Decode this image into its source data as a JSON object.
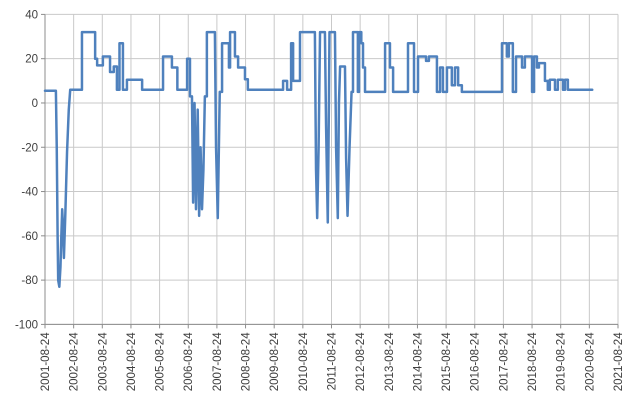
{
  "chart_data": {
    "type": "line",
    "title": "",
    "xlabel": "",
    "ylabel": "",
    "grid": true,
    "legend": "none",
    "series_name": "value",
    "series_color": "#4F81BD",
    "grid_color": "#C9C9C9",
    "axis_color": "#8C8C8C",
    "tick_text_color": "#404040",
    "background_color": "#FFFFFF",
    "ylim": [
      -100,
      40
    ],
    "y_step": 20,
    "y_tick_labels": [
      "40",
      "20",
      "0",
      "-20",
      "-40",
      "-60",
      "-80",
      "-100"
    ],
    "x_range_years": [
      0,
      20
    ],
    "x_tick_labels": [
      "2001-08-24",
      "2002-08-24",
      "2003-08-24",
      "2004-08-24",
      "2005-08-24",
      "2006-08-24",
      "2007-08-24",
      "2008-08-24",
      "2009-08-24",
      "2010-08-24",
      "2011-08-24",
      "2012-08-24",
      "2013-08-24",
      "2014-08-24",
      "2015-08-24",
      "2016-08-24",
      "2017-08-24",
      "2018-08-24",
      "2019-08-24",
      "2020-08-24",
      "2021-08-24"
    ],
    "points": [
      [
        0.0,
        5.5
      ],
      [
        0.38,
        5.5
      ],
      [
        0.41,
        -20
      ],
      [
        0.44,
        -60
      ],
      [
        0.46,
        -80
      ],
      [
        0.5,
        -83
      ],
      [
        0.54,
        -74
      ],
      [
        0.57,
        -60
      ],
      [
        0.6,
        -48
      ],
      [
        0.63,
        -56
      ],
      [
        0.66,
        -70
      ],
      [
        0.71,
        -50
      ],
      [
        0.77,
        -22
      ],
      [
        0.83,
        -3
      ],
      [
        0.88,
        6
      ],
      [
        1.29,
        6
      ],
      [
        1.29,
        32
      ],
      [
        1.75,
        32
      ],
      [
        1.75,
        20
      ],
      [
        1.82,
        20
      ],
      [
        1.82,
        17
      ],
      [
        2.02,
        17
      ],
      [
        2.02,
        21
      ],
      [
        2.27,
        21
      ],
      [
        2.27,
        14
      ],
      [
        2.4,
        14
      ],
      [
        2.4,
        16.5
      ],
      [
        2.51,
        16.5
      ],
      [
        2.51,
        6
      ],
      [
        2.6,
        6
      ],
      [
        2.6,
        27
      ],
      [
        2.72,
        27
      ],
      [
        2.72,
        6
      ],
      [
        2.86,
        6
      ],
      [
        2.86,
        10.5
      ],
      [
        3.39,
        10.5
      ],
      [
        3.39,
        6
      ],
      [
        4.12,
        6
      ],
      [
        4.12,
        21
      ],
      [
        4.43,
        21
      ],
      [
        4.43,
        16
      ],
      [
        4.62,
        16
      ],
      [
        4.62,
        6
      ],
      [
        4.96,
        6
      ],
      [
        4.96,
        20
      ],
      [
        5.06,
        20
      ],
      [
        5.06,
        3
      ],
      [
        5.13,
        3
      ],
      [
        5.17,
        -45
      ],
      [
        5.22,
        0
      ],
      [
        5.27,
        -48
      ],
      [
        5.33,
        -3
      ],
      [
        5.38,
        -51
      ],
      [
        5.43,
        -20
      ],
      [
        5.48,
        -48
      ],
      [
        5.53,
        -30
      ],
      [
        5.58,
        3
      ],
      [
        5.65,
        3
      ],
      [
        5.65,
        32
      ],
      [
        5.93,
        32
      ],
      [
        5.97,
        -20
      ],
      [
        6.03,
        -52
      ],
      [
        6.1,
        5
      ],
      [
        6.18,
        5
      ],
      [
        6.18,
        27
      ],
      [
        6.42,
        27
      ],
      [
        6.42,
        16
      ],
      [
        6.46,
        16
      ],
      [
        6.46,
        32
      ],
      [
        6.63,
        32
      ],
      [
        6.63,
        21
      ],
      [
        6.74,
        21
      ],
      [
        6.74,
        16
      ],
      [
        6.98,
        16
      ],
      [
        6.98,
        10.7
      ],
      [
        7.08,
        10.7
      ],
      [
        7.08,
        6
      ],
      [
        8.31,
        6
      ],
      [
        8.31,
        10
      ],
      [
        8.45,
        10
      ],
      [
        8.45,
        6
      ],
      [
        8.59,
        6
      ],
      [
        8.59,
        27
      ],
      [
        8.66,
        27
      ],
      [
        8.66,
        10
      ],
      [
        8.9,
        10
      ],
      [
        8.9,
        32
      ],
      [
        9.42,
        32
      ],
      [
        9.46,
        -30
      ],
      [
        9.5,
        -52
      ],
      [
        9.55,
        -20
      ],
      [
        9.6,
        32
      ],
      [
        9.77,
        32
      ],
      [
        9.81,
        -10
      ],
      [
        9.87,
        -54
      ],
      [
        9.91,
        0
      ],
      [
        9.93,
        32
      ],
      [
        10.12,
        32
      ],
      [
        10.16,
        -20
      ],
      [
        10.22,
        -52
      ],
      [
        10.26,
        0
      ],
      [
        10.3,
        16.5
      ],
      [
        10.47,
        16.5
      ],
      [
        10.51,
        -25
      ],
      [
        10.56,
        -51
      ],
      [
        10.63,
        -20
      ],
      [
        10.7,
        5
      ],
      [
        10.75,
        5
      ],
      [
        10.75,
        32
      ],
      [
        10.92,
        32
      ],
      [
        10.92,
        5
      ],
      [
        10.96,
        5
      ],
      [
        10.96,
        32
      ],
      [
        11.04,
        32
      ],
      [
        11.04,
        27
      ],
      [
        11.1,
        27
      ],
      [
        11.1,
        16
      ],
      [
        11.17,
        16
      ],
      [
        11.17,
        5
      ],
      [
        11.87,
        5
      ],
      [
        11.87,
        27
      ],
      [
        12.04,
        27
      ],
      [
        12.04,
        16
      ],
      [
        12.15,
        16
      ],
      [
        12.15,
        5
      ],
      [
        12.67,
        5
      ],
      [
        12.67,
        27
      ],
      [
        12.88,
        27
      ],
      [
        12.88,
        5
      ],
      [
        13.02,
        5
      ],
      [
        13.02,
        21
      ],
      [
        13.3,
        21
      ],
      [
        13.3,
        19
      ],
      [
        13.4,
        19
      ],
      [
        13.4,
        21
      ],
      [
        13.68,
        21
      ],
      [
        13.68,
        5
      ],
      [
        13.79,
        5
      ],
      [
        13.79,
        16
      ],
      [
        13.89,
        16
      ],
      [
        13.89,
        5
      ],
      [
        14.03,
        5
      ],
      [
        14.03,
        16
      ],
      [
        14.2,
        16
      ],
      [
        14.2,
        8
      ],
      [
        14.31,
        8
      ],
      [
        14.31,
        16
      ],
      [
        14.42,
        16
      ],
      [
        14.42,
        8
      ],
      [
        14.55,
        8
      ],
      [
        14.55,
        5
      ],
      [
        15.95,
        5
      ],
      [
        15.95,
        27
      ],
      [
        16.12,
        27
      ],
      [
        16.12,
        21
      ],
      [
        16.19,
        21
      ],
      [
        16.19,
        27
      ],
      [
        16.33,
        27
      ],
      [
        16.33,
        5
      ],
      [
        16.44,
        5
      ],
      [
        16.44,
        21
      ],
      [
        16.65,
        21
      ],
      [
        16.65,
        16
      ],
      [
        16.75,
        16
      ],
      [
        16.75,
        21
      ],
      [
        17.0,
        21
      ],
      [
        17.0,
        5
      ],
      [
        17.07,
        5
      ],
      [
        17.07,
        21
      ],
      [
        17.17,
        21
      ],
      [
        17.17,
        16
      ],
      [
        17.24,
        16
      ],
      [
        17.24,
        18
      ],
      [
        17.45,
        18
      ],
      [
        17.45,
        10
      ],
      [
        17.55,
        10
      ],
      [
        17.55,
        6
      ],
      [
        17.62,
        6
      ],
      [
        17.62,
        10.5
      ],
      [
        17.8,
        10.5
      ],
      [
        17.8,
        6
      ],
      [
        17.9,
        6
      ],
      [
        17.9,
        10.5
      ],
      [
        18.08,
        10.5
      ],
      [
        18.08,
        6
      ],
      [
        18.15,
        6
      ],
      [
        18.15,
        10.5
      ],
      [
        18.25,
        10.5
      ],
      [
        18.25,
        6
      ],
      [
        19.1,
        6
      ]
    ]
  }
}
